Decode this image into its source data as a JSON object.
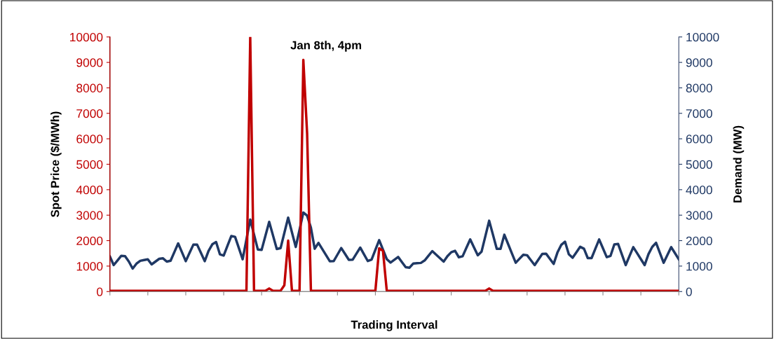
{
  "chart_data": {
    "type": "line",
    "xlabel": "Trading Interval",
    "ylabel": "Spot Price ($/MWh)",
    "y2label": "Demand (MW)",
    "annotations": [
      "Jan 8th, 4pm"
    ],
    "categories": [
      null,
      null,
      null,
      null,
      null,
      null,
      null,
      null,
      null,
      null,
      null,
      null,
      null,
      null,
      null,
      null,
      null,
      null,
      null,
      null,
      null,
      null,
      null,
      null,
      null,
      null,
      null,
      null,
      null,
      null,
      null,
      null,
      null,
      null,
      null,
      null,
      null,
      null,
      null,
      null,
      null,
      null,
      null,
      null,
      null,
      null,
      null,
      null,
      null,
      null,
      null,
      null,
      null,
      null,
      null,
      null,
      null,
      null,
      null,
      null,
      null,
      null,
      null,
      null,
      null,
      null,
      null,
      null,
      null,
      null,
      null,
      null,
      null,
      null,
      null,
      null,
      null,
      null,
      null,
      null,
      null,
      null,
      null,
      null,
      null,
      null,
      null,
      null,
      null,
      null,
      null,
      null,
      null,
      null,
      null,
      null,
      null,
      null,
      null,
      null,
      null,
      null,
      null,
      null,
      null,
      null,
      null,
      null,
      null,
      null,
      null,
      null,
      null,
      null,
      null,
      null,
      null,
      null,
      null,
      null,
      null,
      null,
      null,
      null,
      null,
      null,
      null,
      null,
      null,
      null,
      null,
      null,
      null,
      null,
      null,
      null,
      null,
      null,
      null,
      null,
      null,
      null,
      null,
      null,
      null,
      null,
      null,
      null,
      null,
      null,
      null
    ],
    "ylim": [
      0,
      10000
    ],
    "yticks": [
      0,
      1000,
      2000,
      3000,
      4000,
      5000,
      6000,
      7000,
      8000,
      9000,
      10000
    ],
    "y2lim": [
      0,
      10000
    ],
    "y2ticks": [
      0,
      1000,
      2000,
      3000,
      4000,
      5000,
      6000,
      7000,
      8000,
      9000,
      10000
    ],
    "marker": "none",
    "line_style": "solid",
    "series": [
      {
        "color": "#1f3864",
        "axis": "y2",
        "values": [
          1377,
          1038,
          1221,
          1404,
          1389,
          1176,
          900,
          1095,
          1208,
          1237,
          1267,
          1066,
          1176,
          1286,
          1304,
          1175,
          1209,
          1550,
          1892,
          1542,
          1193,
          1517,
          1840,
          1840,
          1517,
          1193,
          1590,
          1855,
          1945,
          1462,
          1412,
          1795,
          2178,
          2149,
          1708,
          1267,
          2048,
          2828,
          2240,
          1652,
          1634,
          2185,
          2736,
          2204,
          1671,
          1704,
          2303,
          2901,
          2326,
          1750,
          2427,
          3104,
          2981,
          2507,
          1680,
          1910,
          1669,
          1427,
          1186,
          1194,
          1451,
          1708,
          1477,
          1245,
          1249,
          1488,
          1727,
          1462,
          1197,
          1256,
          1638,
          2020,
          1646,
          1272,
          1139,
          1248,
          1358,
          1156,
          955,
          937,
          1102,
          1113,
          1124,
          1222,
          1405,
          1589,
          1451,
          1314,
          1176,
          1389,
          1543,
          1600,
          1348,
          1386,
          1717,
          2047,
          1735,
          1423,
          1570,
          2176,
          2782,
          2231,
          1680,
          1680,
          2231,
          1864,
          1497,
          1130,
          1288,
          1445,
          1427,
          1232,
          1038,
          1258,
          1479,
          1488,
          1286,
          1084,
          1531,
          1831,
          1958,
          1467,
          1328,
          1543,
          1758,
          1681,
          1314,
          1313,
          1680,
          2047,
          1698,
          1350,
          1401,
          1850,
          1868,
          1453,
          1038,
          1391,
          1744,
          1509,
          1273,
          1038,
          1468,
          1754,
          1916,
          1523,
          1130,
          1437,
          1744,
          1506,
          1267
        ]
      },
      {
        "color": "#c00000",
        "values": [
          30,
          30,
          30,
          30,
          30,
          30,
          30,
          30,
          30,
          30,
          30,
          30,
          30,
          30,
          30,
          30,
          30,
          30,
          30,
          30,
          30,
          30,
          30,
          30,
          30,
          30,
          30,
          30,
          30,
          30,
          30,
          30,
          30,
          30,
          30,
          30,
          30,
          10000,
          30,
          30,
          30,
          30,
          120,
          30,
          30,
          30,
          250,
          2000,
          30,
          30,
          30,
          9100,
          6200,
          30,
          30,
          30,
          30,
          30,
          30,
          30,
          30,
          30,
          30,
          30,
          30,
          30,
          30,
          30,
          30,
          30,
          30,
          1700,
          1600,
          30,
          30,
          30,
          30,
          30,
          30,
          30,
          30,
          30,
          30,
          30,
          30,
          30,
          30,
          30,
          30,
          30,
          30,
          30,
          30,
          30,
          30,
          30,
          30,
          30,
          30,
          30,
          120,
          30,
          30,
          30,
          30,
          30,
          30,
          30,
          30,
          30,
          30,
          30,
          30,
          30,
          30,
          30,
          30,
          30,
          30,
          30,
          30,
          30,
          30,
          30,
          30,
          30,
          30,
          30,
          30,
          30,
          30,
          30,
          30,
          30,
          30,
          30,
          30,
          30,
          30,
          30,
          30,
          30,
          30,
          30,
          30,
          30,
          30,
          30,
          30,
          30,
          30
        ]
      }
    ]
  }
}
